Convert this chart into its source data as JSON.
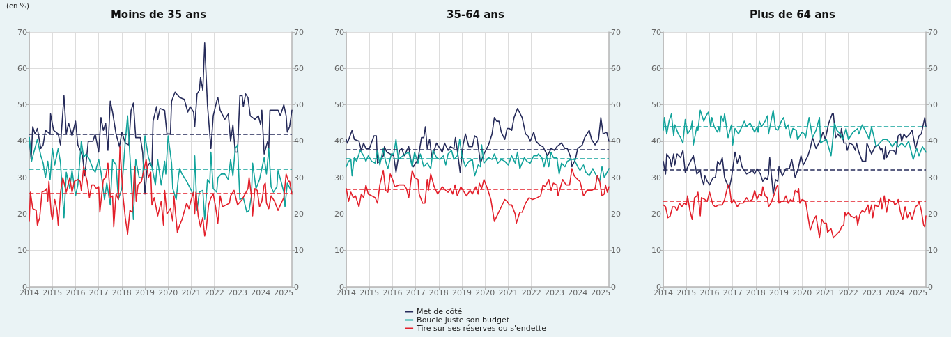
{
  "chart_data": [
    {
      "type": "line",
      "title": "Moins de 35 ans",
      "annotations": [
        "(en %)"
      ],
      "xlim": [
        2014,
        2025.35
      ],
      "xticks": [
        2014,
        2015,
        2016,
        2017,
        2018,
        2019,
        2020,
        2021,
        2022,
        2023,
        2024,
        2025
      ],
      "ylim": [
        0,
        70
      ],
      "yticks": [
        0,
        10,
        20,
        30,
        40,
        50,
        60,
        70
      ],
      "y2lim": [
        0,
        70
      ],
      "y2ticks": [
        0,
        10,
        20,
        30,
        40,
        50,
        60,
        70
      ],
      "grid": true,
      "marker": "none",
      "line_style": "solid",
      "legend": false,
      "ref_lines": [
        {
          "axis": "y",
          "value": 42,
          "color": "#262b5a",
          "line_style": "dashed"
        },
        {
          "axis": "y",
          "value": 32.4,
          "color": "#12a39b",
          "line_style": "dashed"
        },
        {
          "axis": "y",
          "value": 25.7,
          "color": "#e3202b",
          "line_style": "dashed"
        }
      ],
      "series": [
        {
          "color": "#262b5a",
          "x": [
            2014.0,
            2014.08,
            2014.15,
            2014.25,
            2014.35,
            2014.5,
            2014.6,
            2014.7,
            2014.9,
            2014.92,
            2015.05,
            2015.25,
            2015.35,
            2015.5,
            2015.6,
            2015.7,
            2015.85,
            2016.0,
            2016.1,
            2016.3,
            2016.4,
            2016.55,
            2016.75,
            2016.85,
            2017.0,
            2017.1,
            2017.2,
            2017.3,
            2017.4,
            2017.5,
            2017.6,
            2017.75,
            2017.9,
            2018.0,
            2018.15,
            2018.3,
            2018.4,
            2018.5,
            2018.6,
            2018.8,
            2018.9,
            2019.0,
            2019.1,
            2019.2,
            2019.3,
            2019.35,
            2019.5,
            2019.55,
            2019.65,
            2019.85,
            2019.95,
            2020.1,
            2020.15,
            2020.3,
            2020.5,
            2020.7,
            2020.85,
            2020.95,
            2021.1,
            2021.15,
            2021.25,
            2021.35,
            2021.4,
            2021.5,
            2021.58,
            2021.7,
            2021.85,
            2021.95,
            2022.1,
            2022.15,
            2022.25,
            2022.45,
            2022.6,
            2022.7,
            2022.8,
            2022.9,
            2023.0,
            2023.1,
            2023.2,
            2023.25,
            2023.35,
            2023.45,
            2023.55,
            2023.75,
            2023.9,
            2024.0,
            2024.05,
            2024.15,
            2024.3,
            2024.35,
            2024.4,
            2024.6,
            2024.75,
            2024.85,
            2025.0,
            2025.1,
            2025.15,
            2025.25,
            2025.35
          ],
          "values": [
            41,
            35,
            44,
            42,
            43.5,
            38,
            39,
            43,
            42,
            47.5,
            43,
            42,
            39,
            52.5,
            42,
            45,
            41.5,
            45.5,
            39,
            36,
            30.5,
            40,
            40,
            42,
            37,
            46.5,
            43,
            45,
            37.5,
            51,
            48,
            42,
            38.5,
            42.5,
            39.5,
            39,
            48.5,
            50.5,
            41,
            41,
            37,
            25.5,
            33,
            34,
            33,
            45.5,
            49.5,
            46,
            49,
            48.5,
            42,
            42,
            51,
            53.5,
            52,
            51.5,
            48,
            49.5,
            48,
            44,
            53,
            54,
            57.5,
            54,
            67,
            50,
            38,
            47,
            51,
            52,
            48.5,
            46,
            47.5,
            40,
            44.5,
            37,
            37,
            52.5,
            52.5,
            49.5,
            53,
            52,
            47,
            46,
            47,
            44.5,
            48.5,
            36.5,
            40,
            38,
            48.5,
            48.5,
            48.5,
            47,
            50,
            47,
            42.5,
            44,
            48.5
          ]
        },
        {
          "color": "#12a39b",
          "x": [
            2014.0,
            2014.1,
            2014.2,
            2014.35,
            2014.5,
            2014.6,
            2014.7,
            2014.8,
            2014.9,
            2015.0,
            2015.1,
            2015.25,
            2015.35,
            2015.5,
            2015.6,
            2015.75,
            2015.85,
            2016.0,
            2016.1,
            2016.25,
            2016.35,
            2016.45,
            2016.6,
            2016.75,
            2016.85,
            2017.0,
            2017.1,
            2017.25,
            2017.35,
            2017.5,
            2017.6,
            2017.75,
            2017.85,
            2018.0,
            2018.15,
            2018.25,
            2018.35,
            2018.5,
            2018.6,
            2018.75,
            2018.9,
            2019.0,
            2019.15,
            2019.3,
            2019.45,
            2019.55,
            2019.7,
            2019.85,
            2019.9,
            2020.0,
            2020.15,
            2020.2,
            2020.35,
            2020.45,
            2020.5,
            2020.6,
            2020.8,
            2021.0,
            2021.1,
            2021.15,
            2021.25,
            2021.35,
            2021.5,
            2021.58,
            2021.7,
            2021.8,
            2021.85,
            2021.95,
            2022.1,
            2022.15,
            2022.3,
            2022.45,
            2022.6,
            2022.7,
            2022.8,
            2022.9,
            2023.0,
            2023.1,
            2023.25,
            2023.4,
            2023.5,
            2023.6,
            2023.65,
            2023.8,
            2023.95,
            2024.1,
            2024.15,
            2024.25,
            2024.35,
            2024.45,
            2024.55,
            2024.7,
            2024.75,
            2024.9,
            2025.0,
            2025.05,
            2025.15,
            2025.35
          ],
          "values": [
            41,
            34.5,
            37,
            40.5,
            36,
            34,
            30,
            34.5,
            29.5,
            38,
            33.5,
            38,
            34,
            19,
            31.5,
            27,
            32,
            25,
            28,
            40,
            35.5,
            36.5,
            35,
            32.5,
            31.5,
            35,
            31.5,
            24,
            28.5,
            22.5,
            35,
            33.5,
            24,
            27,
            40,
            47,
            36,
            18.5,
            35,
            30,
            30,
            41.5,
            35.5,
            33,
            28,
            35,
            28,
            34.5,
            31,
            41.5,
            34,
            27,
            24,
            30.5,
            32.5,
            31,
            29,
            26.5,
            25,
            36,
            21,
            26,
            26.5,
            18.5,
            29.5,
            28.5,
            37,
            27,
            26,
            30,
            31,
            31,
            29.5,
            35,
            30.5,
            38,
            39,
            24,
            24.5,
            20.5,
            21,
            25,
            34,
            27,
            29.5,
            34,
            35.5,
            31,
            38,
            27.5,
            26,
            27.5,
            32,
            28.5,
            26,
            22,
            28.5,
            26
          ]
        },
        {
          "color": "#e3202b",
          "x": [
            2014.0,
            2014.05,
            2014.15,
            2014.3,
            2014.35,
            2014.45,
            2014.55,
            2014.7,
            2014.75,
            2014.8,
            2014.85,
            2014.95,
            2015.0,
            2015.1,
            2015.2,
            2015.25,
            2015.35,
            2015.45,
            2015.6,
            2015.75,
            2015.85,
            2015.95,
            2016.1,
            2016.2,
            2016.25,
            2016.35,
            2016.5,
            2016.6,
            2016.7,
            2016.8,
            2016.9,
            2017.0,
            2017.05,
            2017.2,
            2017.3,
            2017.4,
            2017.5,
            2017.6,
            2017.65,
            2017.75,
            2017.85,
            2017.92,
            2018.05,
            2018.15,
            2018.25,
            2018.35,
            2018.45,
            2018.55,
            2018.62,
            2018.7,
            2018.85,
            2018.95,
            2019.05,
            2019.15,
            2019.25,
            2019.3,
            2019.4,
            2019.55,
            2019.7,
            2019.8,
            2019.85,
            2019.95,
            2020.1,
            2020.2,
            2020.25,
            2020.4,
            2020.5,
            2020.6,
            2020.8,
            2020.9,
            2021.0,
            2021.1,
            2021.15,
            2021.2,
            2021.3,
            2021.4,
            2021.5,
            2021.58,
            2021.65,
            2021.75,
            2021.85,
            2021.95,
            2022.05,
            2022.15,
            2022.25,
            2022.35,
            2022.5,
            2022.65,
            2022.7,
            2022.85,
            2023.0,
            2023.2,
            2023.45,
            2023.5,
            2023.6,
            2023.65,
            2023.75,
            2023.85,
            2023.95,
            2024.05,
            2024.15,
            2024.2,
            2024.25,
            2024.35,
            2024.45,
            2024.6,
            2024.75,
            2024.85,
            2025.0,
            2025.1,
            2025.2,
            2025.25,
            2025.35
          ],
          "values": [
            18,
            26,
            21.5,
            21,
            17,
            19,
            26,
            26.5,
            27,
            23.5,
            29,
            20,
            18.5,
            24,
            21,
            17,
            26,
            30,
            26,
            30,
            26,
            29,
            29.5,
            29,
            26.5,
            33,
            29,
            24.5,
            28,
            28,
            27,
            27.5,
            20.5,
            29.5,
            30,
            34,
            24.5,
            25,
            16.5,
            25.5,
            24,
            38.5,
            25,
            19,
            14.5,
            21,
            20.5,
            33,
            23.5,
            28,
            29,
            32,
            35,
            30,
            31.5,
            22.5,
            24.5,
            19.5,
            23.5,
            17,
            26.5,
            20,
            21.5,
            18,
            25,
            15,
            17,
            18.5,
            23,
            21.5,
            24,
            26,
            20,
            26,
            19.5,
            16.5,
            19,
            14,
            16,
            22.5,
            24.5,
            25.5,
            22,
            17.5,
            25,
            22,
            22.5,
            23,
            25,
            26.5,
            22.5,
            24,
            27,
            30,
            25,
            19.5,
            27,
            26.5,
            22,
            23.5,
            28,
            28.5,
            23,
            21.5,
            25,
            23.5,
            21,
            22.5,
            24.5,
            31,
            29,
            29,
            25.5
          ]
        }
      ]
    },
    {
      "type": "line",
      "title": "35-64 ans",
      "xlim": [
        2014,
        2025.35
      ],
      "xticks": [
        2014,
        2015,
        2016,
        2017,
        2018,
        2019,
        2020,
        2021,
        2022,
        2023,
        2024,
        2025
      ],
      "ylim": [
        0,
        70
      ],
      "yticks": [
        0,
        10,
        20,
        30,
        40,
        50,
        60,
        70
      ],
      "y2lim": [
        0,
        70
      ],
      "y2ticks": [
        0,
        10,
        20,
        30,
        40,
        50,
        60,
        70
      ],
      "grid": true,
      "marker": "none",
      "line_style": "solid",
      "legend": "bottom",
      "ref_lines": [
        {
          "axis": "y",
          "value": 37.8,
          "color": "#262b5a",
          "line_style": "dashed"
        },
        {
          "axis": "y",
          "value": 35.2,
          "color": "#12a39b",
          "line_style": "dashed"
        },
        {
          "axis": "y",
          "value": 26.8,
          "color": "#e3202b",
          "line_style": "dashed"
        }
      ],
      "series": [
        {
          "name": "Met de côté",
          "color": "#262b5a",
          "x": [
            2014.0,
            2014.05,
            2014.25,
            2014.35,
            2014.55,
            2014.65,
            2014.75,
            2014.85,
            2015.0,
            2015.2,
            2015.3,
            2015.35,
            2015.45,
            2015.6,
            2015.65,
            2015.75,
            2015.9,
            2016.05,
            2016.15,
            2016.3,
            2016.4,
            2016.5,
            2016.7,
            2016.8,
            2016.9,
            2017.1,
            2017.25,
            2017.35,
            2017.42,
            2017.5,
            2017.6,
            2017.7,
            2017.9,
            2018.05,
            2018.15,
            2018.25,
            2018.4,
            2018.5,
            2018.65,
            2018.72,
            2018.8,
            2018.92,
            2019.05,
            2019.15,
            2019.3,
            2019.45,
            2019.55,
            2019.65,
            2019.8,
            2019.95,
            2020.15,
            2020.3,
            2020.4,
            2020.5,
            2020.6,
            2020.7,
            2020.85,
            2020.95,
            2021.05,
            2021.15,
            2021.25,
            2021.4,
            2021.6,
            2021.75,
            2021.85,
            2021.95,
            2022.1,
            2022.2,
            2022.35,
            2022.5,
            2022.7,
            2022.85,
            2023.0,
            2023.1,
            2023.3,
            2023.45,
            2023.55,
            2023.7,
            2023.75,
            2023.9,
            2024.0,
            2024.2,
            2024.3,
            2024.45,
            2024.5,
            2024.6,
            2024.75,
            2024.9,
            2025.0,
            2025.1,
            2025.25,
            2025.35
          ],
          "values": [
            40.5,
            39.5,
            43,
            40.5,
            40,
            37.5,
            39.5,
            38,
            38,
            41.5,
            41.5,
            34,
            34.5,
            36,
            38.5,
            37,
            36.5,
            36,
            31.5,
            37.5,
            38,
            36,
            38.5,
            34.5,
            33,
            35,
            41,
            41,
            44,
            38,
            40.5,
            35.5,
            39.5,
            38,
            37,
            39.5,
            37.5,
            38.5,
            38,
            41,
            37.5,
            31.5,
            39,
            42,
            38.5,
            38.5,
            41.5,
            41,
            34,
            36.5,
            39,
            42,
            46.5,
            45.5,
            45.5,
            42.5,
            40.5,
            43.5,
            43.5,
            43,
            46.5,
            49,
            46.5,
            42,
            41.5,
            40,
            42.5,
            40,
            39,
            38.5,
            36,
            38,
            37.5,
            38.5,
            39.5,
            38,
            38,
            35.5,
            33,
            35,
            38,
            39,
            41,
            42.5,
            43,
            40.5,
            39,
            40.5,
            46.5,
            42,
            42.5,
            40
          ]
        },
        {
          "name": "Boucle juste son budget",
          "color": "#12a39b",
          "x": [
            2014.0,
            2014.1,
            2014.2,
            2014.25,
            2014.35,
            2014.45,
            2014.6,
            2014.75,
            2014.85,
            2014.95,
            2015.1,
            2015.25,
            2015.35,
            2015.45,
            2015.6,
            2015.7,
            2015.8,
            2015.95,
            2016.05,
            2016.15,
            2016.25,
            2016.35,
            2016.55,
            2016.7,
            2016.85,
            2016.95,
            2017.1,
            2017.2,
            2017.35,
            2017.5,
            2017.65,
            2017.75,
            2017.9,
            2018.05,
            2018.2,
            2018.3,
            2018.4,
            2018.55,
            2018.65,
            2018.8,
            2018.9,
            2019.0,
            2019.15,
            2019.3,
            2019.45,
            2019.55,
            2019.7,
            2019.8,
            2019.85,
            2019.95,
            2020.15,
            2020.3,
            2020.4,
            2020.55,
            2020.7,
            2020.85,
            2021.0,
            2021.15,
            2021.3,
            2021.4,
            2021.5,
            2021.7,
            2021.8,
            2021.95,
            2022.1,
            2022.25,
            2022.3,
            2022.45,
            2022.55,
            2022.65,
            2022.75,
            2022.85,
            2022.95,
            2023.1,
            2023.2,
            2023.3,
            2023.45,
            2023.55,
            2023.7,
            2023.85,
            2024.0,
            2024.1,
            2024.25,
            2024.35,
            2024.5,
            2024.65,
            2024.85,
            2024.95,
            2025.05,
            2025.15,
            2025.35
          ],
          "values": [
            33,
            34.5,
            35,
            30.5,
            35.5,
            34.5,
            37.5,
            36,
            34.5,
            36,
            34.5,
            34,
            37.5,
            33.5,
            38,
            34.5,
            32.5,
            36.5,
            36.5,
            40.5,
            35,
            35.5,
            36.5,
            37,
            33,
            37,
            34,
            36.5,
            33,
            34,
            32.5,
            37.5,
            35.5,
            35,
            36,
            33.5,
            36.5,
            37.5,
            35,
            36,
            40.5,
            36,
            33,
            34.5,
            35,
            30.5,
            33.5,
            33,
            39,
            34,
            35.5,
            35,
            36.5,
            34,
            35,
            34.5,
            33.5,
            36,
            34,
            37,
            32.5,
            35.5,
            34.5,
            34,
            36,
            36,
            36.5,
            35.5,
            33,
            36,
            33,
            37,
            35.5,
            35.5,
            31,
            34,
            33,
            34.5,
            35,
            35,
            33,
            32,
            33.5,
            31.5,
            30.5,
            32.5,
            30,
            29,
            33,
            30,
            32.5
          ]
        },
        {
          "name": "Tire sur ses réserves ou s'endette",
          "color": "#e3202b",
          "x": [
            2014.0,
            2014.1,
            2014.2,
            2014.3,
            2014.4,
            2014.55,
            2014.65,
            2014.75,
            2014.85,
            2014.95,
            2015.1,
            2015.25,
            2015.35,
            2015.45,
            2015.6,
            2015.7,
            2015.8,
            2015.9,
            2016.0,
            2016.1,
            2016.3,
            2016.5,
            2016.6,
            2016.7,
            2016.85,
            2016.95,
            2017.1,
            2017.15,
            2017.3,
            2017.4,
            2017.5,
            2017.55,
            2017.65,
            2017.8,
            2017.95,
            2018.15,
            2018.3,
            2018.4,
            2018.5,
            2018.6,
            2018.7,
            2018.8,
            2018.95,
            2019.1,
            2019.2,
            2019.35,
            2019.45,
            2019.6,
            2019.7,
            2019.75,
            2019.85,
            2019.95,
            2020.1,
            2020.25,
            2020.4,
            2020.55,
            2020.7,
            2020.85,
            2020.95,
            2021.05,
            2021.15,
            2021.3,
            2021.35,
            2021.5,
            2021.6,
            2021.75,
            2021.9,
            2022.05,
            2022.25,
            2022.4,
            2022.5,
            2022.6,
            2022.75,
            2022.85,
            2022.95,
            2023.1,
            2023.15,
            2023.35,
            2023.5,
            2023.65,
            2023.75,
            2023.85,
            2024.0,
            2024.1,
            2024.25,
            2024.4,
            2024.6,
            2024.75,
            2024.85,
            2024.95,
            2025.05,
            2025.15,
            2025.2,
            2025.28,
            2025.35
          ],
          "values": [
            27,
            23.5,
            26,
            24.5,
            25,
            22,
            25.5,
            24.5,
            28,
            25.5,
            25,
            24.5,
            23,
            28,
            32,
            26.5,
            26,
            31,
            29.5,
            27.5,
            28,
            28,
            27,
            24.5,
            32,
            30,
            29.5,
            25.5,
            23,
            23,
            29.5,
            26.5,
            31,
            27.5,
            25.5,
            27.5,
            26.5,
            26,
            27,
            25.5,
            28,
            25,
            27.5,
            26,
            25,
            26.5,
            25.5,
            27.5,
            25.5,
            28.5,
            27,
            29.5,
            27,
            24,
            18,
            20,
            22,
            24,
            23.5,
            22.5,
            22.5,
            20,
            17.5,
            20.5,
            20.5,
            23,
            24.5,
            24,
            24.5,
            25,
            28,
            27.5,
            29.5,
            26.5,
            28.5,
            28,
            25,
            29.5,
            28,
            28,
            32.5,
            30.5,
            29.5,
            29,
            25,
            26.5,
            26.5,
            27,
            30.5,
            29,
            25,
            25.5,
            28,
            26,
            27.5
          ]
        }
      ]
    },
    {
      "type": "line",
      "title": "Plus de 64 ans",
      "xlim": [
        2014,
        2025.35
      ],
      "xticks": [
        2014,
        2015,
        2016,
        2017,
        2018,
        2019,
        2020,
        2021,
        2022,
        2023,
        2024,
        2025
      ],
      "ylim": [
        0,
        70
      ],
      "yticks": [
        0,
        10,
        20,
        30,
        40,
        50,
        60,
        70
      ],
      "y2lim": [
        0,
        70
      ],
      "y2ticks": [
        0,
        10,
        20,
        30,
        40,
        50,
        60,
        70
      ],
      "grid": true,
      "marker": "none",
      "line_style": "solid",
      "legend": false,
      "ref_lines": [
        {
          "axis": "y",
          "value": 44.1,
          "color": "#12a39b",
          "line_style": "dashed"
        },
        {
          "axis": "y",
          "value": 32.2,
          "color": "#262b5a",
          "line_style": "dashed"
        },
        {
          "axis": "y",
          "value": 23.6,
          "color": "#e3202b",
          "line_style": "dashed"
        }
      ],
      "series": [
        {
          "color": "#262b5a",
          "x": [
            2014.0,
            2014.1,
            2014.15,
            2014.3,
            2014.35,
            2014.45,
            2014.5,
            2014.6,
            2014.75,
            2014.85,
            2014.95,
            2015.1,
            2015.3,
            2015.45,
            2015.6,
            2015.65,
            2015.75,
            2015.8,
            2015.9,
            2016.0,
            2016.15,
            2016.25,
            2016.35,
            2016.45,
            2016.55,
            2016.65,
            2016.85,
            2016.95,
            2017.1,
            2017.2,
            2017.3,
            2017.4,
            2017.5,
            2017.6,
            2017.75,
            2017.85,
            2017.95,
            2018.05,
            2018.2,
            2018.3,
            2018.4,
            2018.5,
            2018.55,
            2018.6,
            2018.7,
            2018.75,
            2018.85,
            2018.95,
            2019.0,
            2019.15,
            2019.3,
            2019.45,
            2019.55,
            2019.7,
            2019.85,
            2019.95,
            2020.05,
            2020.25,
            2020.35,
            2020.45,
            2020.6,
            2020.8,
            2020.9,
            2021.0,
            2021.15,
            2021.3,
            2021.35,
            2021.45,
            2021.55,
            2021.65,
            2021.7,
            2021.8,
            2021.9,
            2021.95,
            2022.05,
            2022.2,
            2022.3,
            2022.35,
            2022.45,
            2022.6,
            2022.75,
            2022.8,
            2023.0,
            2023.15,
            2023.3,
            2023.4,
            2023.45,
            2023.55,
            2023.6,
            2023.65,
            2023.8,
            2023.95,
            2024.05,
            2024.15,
            2024.25,
            2024.3,
            2024.4,
            2024.5,
            2024.65,
            2024.75,
            2024.9,
            2025.05,
            2025.15,
            2025.3,
            2025.35
          ],
          "values": [
            34.5,
            31,
            36.5,
            35,
            33,
            36.5,
            33.5,
            36.5,
            35.5,
            37.5,
            31.5,
            33.5,
            36,
            31,
            32,
            30,
            28,
            30.5,
            29,
            28,
            30,
            30,
            34.5,
            33.5,
            35.5,
            30,
            27,
            30,
            37,
            34,
            36,
            33,
            32,
            31,
            31.5,
            32,
            31,
            32.5,
            31,
            29,
            30,
            29.5,
            31,
            35.5,
            29,
            25.5,
            29.5,
            29,
            33,
            30.5,
            32.5,
            32.5,
            35,
            30,
            33,
            36,
            33.5,
            36,
            38,
            41,
            38,
            40.5,
            42.5,
            40.5,
            45,
            47.5,
            47.5,
            41,
            42,
            41,
            43.5,
            39.5,
            39.5,
            37.5,
            39.5,
            39,
            37.5,
            39.5,
            37,
            34.5,
            34.5,
            39.5,
            36.5,
            38.5,
            39,
            37.5,
            38,
            35,
            38.5,
            35.5,
            37.5,
            37.5,
            36.5,
            41.5,
            42,
            40,
            42,
            41,
            42,
            43,
            38,
            41.5,
            42,
            46.5,
            44
          ]
        },
        {
          "color": "#12a39b",
          "x": [
            2014.0,
            2014.05,
            2014.15,
            2014.25,
            2014.35,
            2014.45,
            2014.5,
            2014.65,
            2014.75,
            2014.85,
            2014.95,
            2015.05,
            2015.2,
            2015.25,
            2015.3,
            2015.45,
            2015.5,
            2015.6,
            2015.75,
            2015.85,
            2015.95,
            2016.05,
            2016.1,
            2016.2,
            2016.35,
            2016.4,
            2016.45,
            2016.5,
            2016.6,
            2016.65,
            2016.8,
            2016.95,
            2017.0,
            2017.1,
            2017.25,
            2017.4,
            2017.5,
            2017.6,
            2017.75,
            2017.95,
            2018.05,
            2018.1,
            2018.15,
            2018.25,
            2018.4,
            2018.5,
            2018.55,
            2018.75,
            2018.85,
            2018.95,
            2019.1,
            2019.2,
            2019.3,
            2019.4,
            2019.5,
            2019.6,
            2019.75,
            2019.8,
            2020.0,
            2020.1,
            2020.15,
            2020.3,
            2020.45,
            2020.6,
            2020.75,
            2020.8,
            2020.9,
            2021.05,
            2021.25,
            2021.4,
            2021.5,
            2021.65,
            2021.75,
            2021.9,
            2022.0,
            2022.2,
            2022.4,
            2022.45,
            2022.6,
            2022.8,
            2022.9,
            2023.0,
            2023.2,
            2023.35,
            2023.5,
            2023.65,
            2023.75,
            2023.9,
            2024.05,
            2024.15,
            2024.3,
            2024.45,
            2024.6,
            2024.8,
            2024.95,
            2025.05,
            2025.2,
            2025.35
          ],
          "values": [
            43,
            46.5,
            42,
            45.5,
            47.5,
            41.5,
            44.5,
            42,
            41,
            39.5,
            46,
            42,
            43.5,
            45.5,
            39,
            44,
            43,
            48.5,
            45.5,
            47,
            48,
            44,
            46.5,
            44,
            42.5,
            44,
            42.5,
            47,
            45.5,
            47.5,
            41,
            44.5,
            39,
            43.5,
            42,
            44,
            45.5,
            44,
            45,
            42.5,
            44,
            42.5,
            45.5,
            44,
            45.5,
            47,
            42,
            48.5,
            43.5,
            43,
            45.5,
            46.5,
            43.5,
            44.5,
            41,
            43.5,
            43,
            40.5,
            42.5,
            42,
            41,
            46.5,
            41,
            43,
            46.5,
            39.5,
            40,
            40.5,
            36,
            45,
            43,
            42,
            40.5,
            43.5,
            40.5,
            42.5,
            43.5,
            42,
            44.5,
            42,
            40.5,
            44,
            38.5,
            39.5,
            40.5,
            40.5,
            40,
            38.5,
            40,
            38.5,
            39.5,
            38.5,
            40,
            35,
            38,
            36,
            38.5,
            37
          ]
        },
        {
          "color": "#e3202b",
          "x": [
            2014.0,
            2014.1,
            2014.2,
            2014.3,
            2014.4,
            2014.5,
            2014.6,
            2014.7,
            2014.8,
            2014.9,
            2015.0,
            2015.05,
            2015.15,
            2015.25,
            2015.35,
            2015.45,
            2015.5,
            2015.6,
            2015.65,
            2015.8,
            2015.9,
            2016.0,
            2016.15,
            2016.25,
            2016.4,
            2016.55,
            2016.65,
            2016.8,
            2016.85,
            2016.95,
            2017.05,
            2017.2,
            2017.3,
            2017.45,
            2017.6,
            2017.7,
            2017.85,
            2017.95,
            2018.05,
            2018.15,
            2018.25,
            2018.3,
            2018.4,
            2018.5,
            2018.55,
            2018.65,
            2018.8,
            2018.9,
            2018.95,
            2019.0,
            2019.1,
            2019.2,
            2019.3,
            2019.4,
            2019.5,
            2019.6,
            2019.7,
            2019.8,
            2019.85,
            2019.9,
            2020.0,
            2020.15,
            2020.35,
            2020.45,
            2020.55,
            2020.6,
            2020.7,
            2020.75,
            2020.85,
            2020.95,
            2021.05,
            2021.1,
            2021.25,
            2021.35,
            2021.5,
            2021.65,
            2021.7,
            2021.8,
            2021.85,
            2021.9,
            2022.0,
            2022.1,
            2022.25,
            2022.35,
            2022.4,
            2022.5,
            2022.6,
            2022.7,
            2022.85,
            2022.9,
            2023.0,
            2023.05,
            2023.15,
            2023.3,
            2023.4,
            2023.45,
            2023.55,
            2023.65,
            2023.75,
            2023.85,
            2023.95,
            2024.0,
            2024.1,
            2024.15,
            2024.25,
            2024.35,
            2024.45,
            2024.55,
            2024.65,
            2024.75,
            2024.9,
            2025.0,
            2025.05,
            2025.15,
            2025.25,
            2025.3,
            2025.35
          ],
          "values": [
            22.5,
            22,
            19,
            19.5,
            22,
            22,
            21,
            23,
            22,
            23,
            22.5,
            25,
            21,
            18.5,
            24.5,
            25,
            26,
            19.5,
            24.5,
            24,
            23.5,
            26,
            22.5,
            22,
            22.5,
            22.5,
            24,
            28,
            28,
            23,
            24,
            22,
            23,
            23,
            24.5,
            23.5,
            24,
            26.5,
            24,
            25.5,
            25,
            27.5,
            25,
            24.5,
            22,
            23,
            25.5,
            27.5,
            28,
            23,
            23.5,
            23.5,
            25,
            23,
            24,
            23.5,
            26.5,
            26,
            27,
            23,
            24,
            23.5,
            15.5,
            17.5,
            19,
            19.5,
            15.5,
            13.5,
            18.5,
            17.5,
            17.5,
            15,
            16,
            13.5,
            14.5,
            15.5,
            16.5,
            17,
            20.5,
            19.5,
            20.5,
            19.5,
            19,
            19.5,
            17,
            20,
            21,
            20.5,
            22.5,
            20,
            22.5,
            19,
            22.5,
            22,
            24.5,
            21.5,
            25,
            20.5,
            24,
            23.5,
            23.5,
            22.5,
            23,
            24,
            20.5,
            18.5,
            22,
            19,
            20.5,
            18.5,
            22,
            22.5,
            23.5,
            21,
            17,
            16.5,
            19.5
          ]
        }
      ]
    }
  ]
}
